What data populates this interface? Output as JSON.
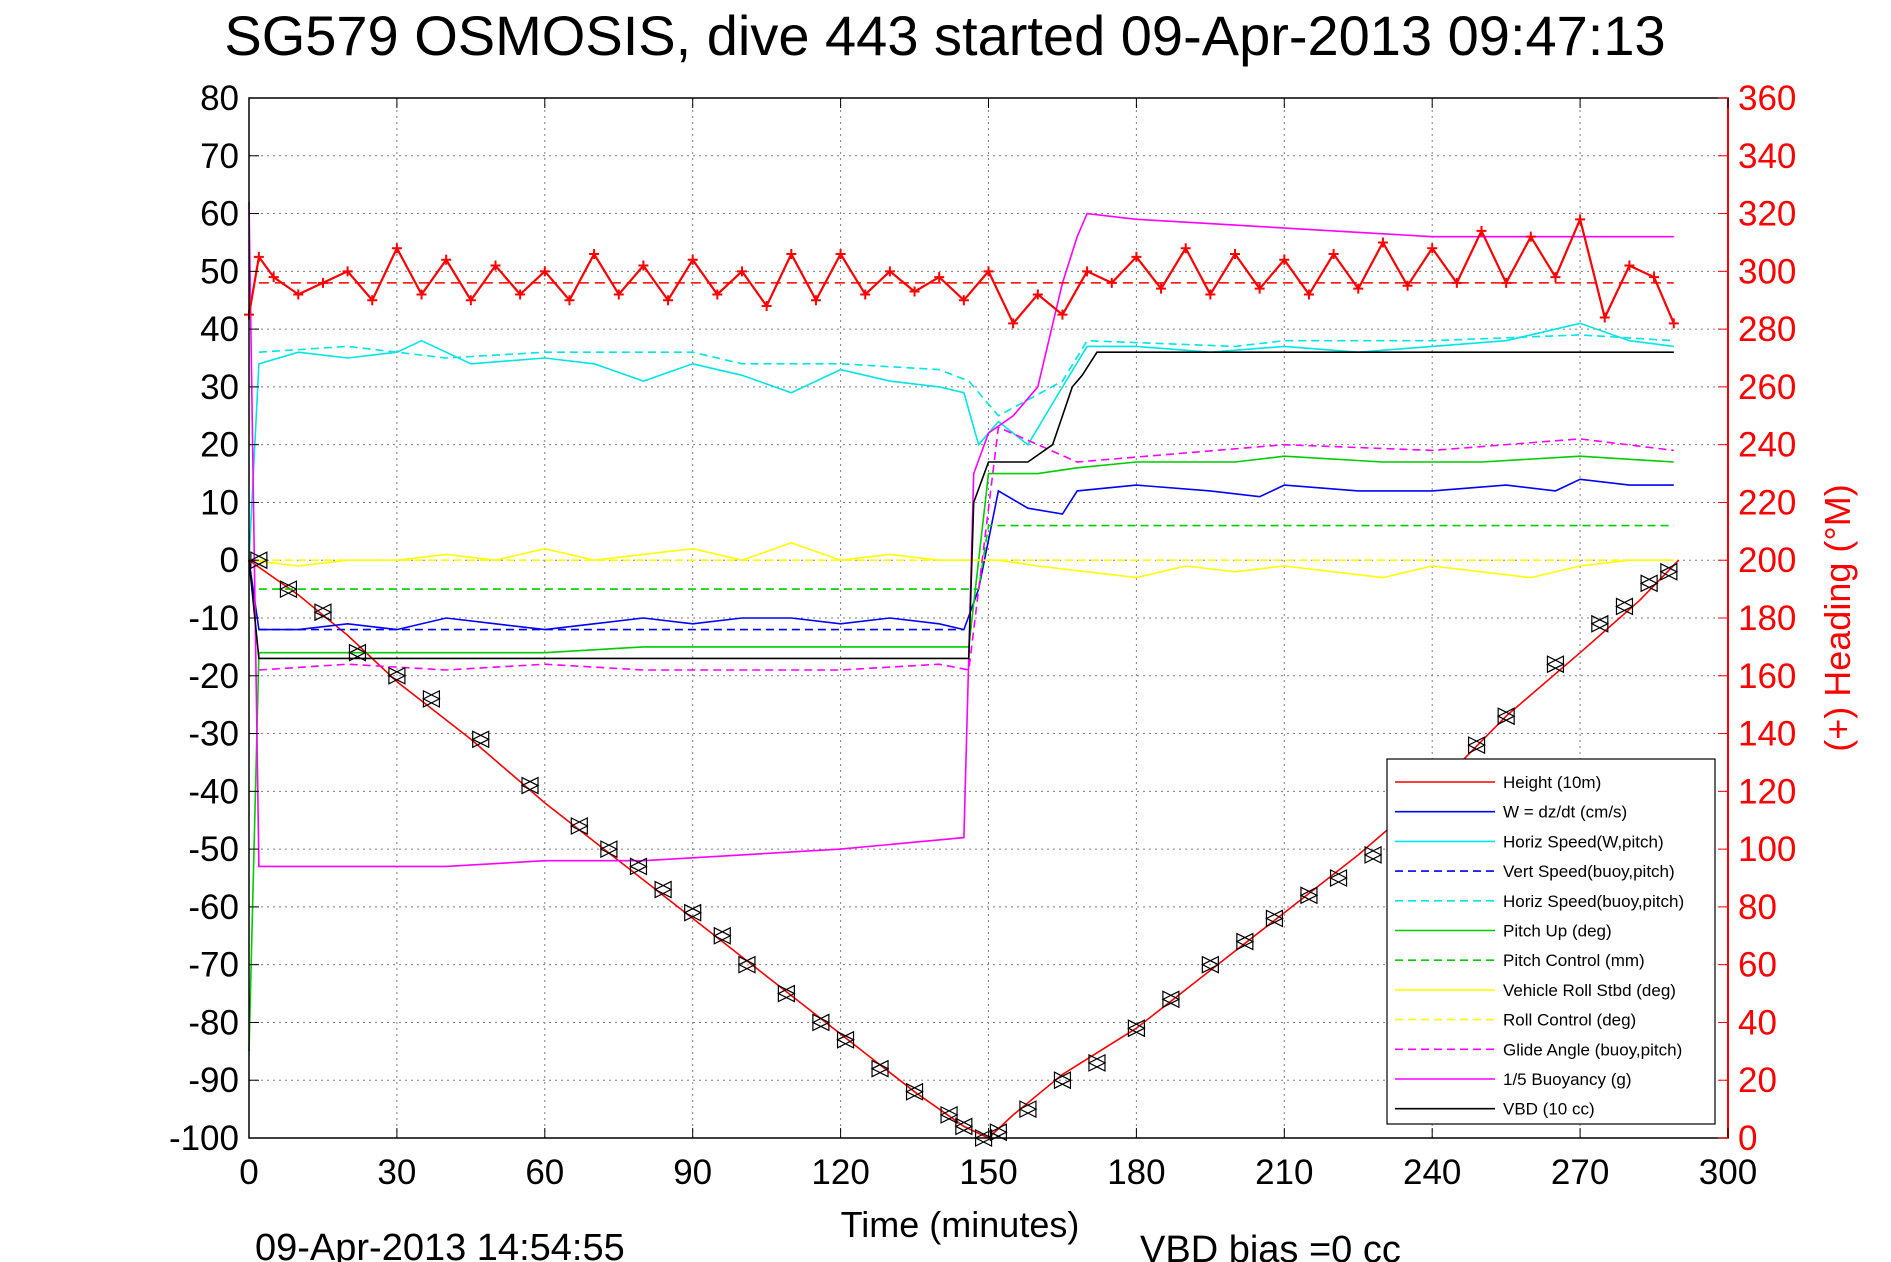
{
  "chart_data": {
    "type": "line",
    "title": "SG579 OSMOSIS, dive 443 started 09-Apr-2013 09:47:13",
    "xlabel": "Time (minutes)",
    "ylabel_right": "(+) Heading (°M)",
    "xlim": [
      0,
      300
    ],
    "ylim_left": [
      -100,
      80
    ],
    "ylim_right": [
      0,
      360
    ],
    "x_ticks": [
      "0",
      "30",
      "60",
      "90",
      "120",
      "150",
      "180",
      "210",
      "240",
      "270",
      "300"
    ],
    "y_left_ticks": [
      "80",
      "70",
      "60",
      "50",
      "40",
      "30",
      "20",
      "10",
      "0",
      "-10",
      "-20",
      "-30",
      "-40",
      "-50",
      "-60",
      "-70",
      "-80",
      "-90",
      "-100"
    ],
    "y_right_ticks": [
      "360",
      "340",
      "320",
      "300",
      "280",
      "260",
      "240",
      "220",
      "200",
      "180",
      "160",
      "140",
      "120",
      "100",
      "80",
      "60",
      "40",
      "20",
      "0"
    ],
    "footer_date": "09-Apr-2013 14:54:55",
    "footer_bias": "VBD bias =0 cc",
    "grid": true,
    "legend_position": "lower-right",
    "series": [
      {
        "name": "Height (10m)",
        "color": "#ff0000",
        "style": "solid",
        "x": [
          0,
          10,
          20,
          30,
          45,
          60,
          75,
          90,
          105,
          120,
          135,
          145,
          150,
          155,
          165,
          180,
          195,
          210,
          225,
          240,
          255,
          270,
          282,
          290
        ],
        "y": [
          0,
          -6,
          -13,
          -21,
          -31,
          -42,
          -52,
          -62,
          -72,
          -82,
          -92,
          -98,
          -100,
          -96,
          -89,
          -81,
          -71,
          -61,
          -51,
          -40,
          -27,
          -16,
          -7,
          0
        ]
      },
      {
        "name": "W = dz/dt (cm/s)",
        "color": "#0000ff",
        "style": "solid",
        "x": [
          0,
          2,
          10,
          20,
          30,
          40,
          50,
          60,
          70,
          80,
          90,
          100,
          110,
          120,
          130,
          140,
          145,
          148,
          152,
          158,
          165,
          168,
          180,
          195,
          205,
          210,
          225,
          240,
          255,
          265,
          270,
          280,
          289
        ],
        "y": [
          0,
          -12,
          -12,
          -11,
          -12,
          -10,
          -11,
          -12,
          -11,
          -10,
          -11,
          -10,
          -10,
          -11,
          -10,
          -11,
          -12,
          -5,
          12,
          9,
          8,
          12,
          13,
          12,
          11,
          13,
          12,
          12,
          13,
          12,
          14,
          13,
          13
        ]
      },
      {
        "name": "Horiz Speed(W,pitch)",
        "color": "#00e5e5",
        "style": "solid",
        "x": [
          0,
          2,
          10,
          20,
          30,
          35,
          45,
          60,
          70,
          80,
          90,
          100,
          110,
          120,
          130,
          140,
          145,
          148,
          152,
          158,
          165,
          170,
          180,
          195,
          210,
          225,
          240,
          255,
          270,
          280,
          289
        ],
        "y": [
          0,
          34,
          36,
          35,
          36,
          38,
          34,
          35,
          34,
          31,
          34,
          32,
          29,
          33,
          31,
          30,
          29,
          20,
          24,
          20,
          30,
          37,
          37,
          36,
          37,
          36,
          37,
          38,
          41,
          38,
          37
        ]
      },
      {
        "name": "Vert Speed(buoy,pitch)",
        "color": "#0000ff",
        "style": "dashed",
        "x": [
          2,
          145
        ],
        "y": [
          -12,
          -12
        ]
      },
      {
        "name": "Horiz Speed(buoy,pitch)",
        "color": "#00e5e5",
        "style": "dashed",
        "x": [
          2,
          20,
          40,
          60,
          90,
          100,
          120,
          140,
          146,
          152,
          165,
          170,
          200,
          210,
          240,
          270,
          289
        ],
        "y": [
          36,
          37,
          35,
          36,
          36,
          34,
          34,
          33,
          31,
          25,
          31,
          38,
          37,
          38,
          38,
          39,
          38
        ]
      },
      {
        "name": "Pitch Up (deg)",
        "color": "#00cc00",
        "style": "solid",
        "x": [
          0,
          2,
          20,
          40,
          60,
          80,
          100,
          120,
          140,
          146,
          150,
          160,
          168,
          180,
          200,
          210,
          230,
          250,
          270,
          289
        ],
        "y": [
          -85,
          -16,
          -16,
          -16,
          -16,
          -15,
          -15,
          -15,
          -15,
          -15,
          15,
          15,
          16,
          17,
          17,
          18,
          17,
          17,
          18,
          17
        ]
      },
      {
        "name": "Pitch Control (mm)",
        "color": "#00cc00",
        "style": "dashed",
        "x": [
          2,
          148,
          150,
          168,
          210,
          289
        ],
        "y": [
          -5,
          -5,
          6,
          6,
          6,
          6
        ]
      },
      {
        "name": "Vehicle Roll Stbd (deg)",
        "color": "#ffff00",
        "style": "solid",
        "x": [
          0,
          10,
          20,
          30,
          40,
          50,
          60,
          70,
          80,
          90,
          100,
          110,
          120,
          130,
          140,
          148,
          152,
          160,
          170,
          180,
          190,
          200,
          210,
          220,
          230,
          240,
          250,
          260,
          270,
          280,
          289
        ],
        "y": [
          0,
          -1,
          0,
          0,
          1,
          0,
          2,
          0,
          1,
          2,
          0,
          3,
          0,
          1,
          0,
          0,
          0,
          -1,
          -2,
          -3,
          -1,
          -2,
          -1,
          -2,
          -3,
          -1,
          -2,
          -3,
          -1,
          0,
          0
        ]
      },
      {
        "name": "Roll Control (deg)",
        "color": "#ffff00",
        "style": "dashed",
        "x": [
          2,
          50,
          90,
          110,
          148,
          180,
          220,
          260,
          289
        ],
        "y": [
          0,
          0,
          0,
          0,
          0,
          0,
          0,
          0,
          0
        ]
      },
      {
        "name": "Glide Angle (buoy,pitch)",
        "color": "#ff00ff",
        "style": "dashed",
        "x": [
          2,
          20,
          40,
          60,
          80,
          100,
          120,
          140,
          146,
          152,
          168,
          210,
          240,
          270,
          289
        ],
        "y": [
          -19,
          -18,
          -19,
          -18,
          -19,
          -19,
          -19,
          -18,
          -19,
          23,
          17,
          20,
          19,
          21,
          19
        ]
      },
      {
        "name": "1/5 Buoyancy (g)",
        "color": "#ff00ff",
        "style": "solid",
        "x": [
          0,
          2,
          20,
          40,
          60,
          80,
          100,
          120,
          145,
          147,
          150,
          155,
          160,
          165,
          168,
          170,
          180,
          200,
          220,
          240,
          260,
          280,
          289
        ],
        "y": [
          62,
          -53,
          -53,
          -53,
          -52,
          -52,
          -51,
          -50,
          -48,
          15,
          22,
          25,
          30,
          48,
          56,
          60,
          59,
          58,
          57,
          56,
          56,
          56,
          56
        ]
      },
      {
        "name": "VBD (10 cc)",
        "color": "#000000",
        "style": "solid",
        "x": [
          0,
          2,
          146,
          147,
          150,
          152,
          158,
          163,
          165,
          167,
          169,
          172,
          289
        ],
        "y": [
          0,
          -17,
          -17,
          10,
          17,
          17,
          17,
          20,
          25,
          30,
          32,
          36,
          36
        ]
      }
    ],
    "heading": {
      "name": "(+) Heading (°M)",
      "color": "#ff0000",
      "x": [
        0,
        2,
        5,
        10,
        15,
        20,
        25,
        30,
        35,
        40,
        45,
        50,
        55,
        60,
        65,
        70,
        75,
        80,
        85,
        90,
        95,
        100,
        105,
        110,
        115,
        120,
        125,
        130,
        135,
        140,
        145,
        150,
        155,
        160,
        165,
        170,
        175,
        180,
        185,
        190,
        195,
        200,
        205,
        210,
        215,
        220,
        225,
        230,
        235,
        240,
        245,
        250,
        255,
        260,
        265,
        270,
        275,
        280,
        285,
        289
      ],
      "y": [
        285,
        305,
        298,
        292,
        296,
        300,
        290,
        308,
        292,
        304,
        290,
        302,
        292,
        300,
        290,
        306,
        292,
        302,
        290,
        304,
        292,
        300,
        288,
        306,
        290,
        306,
        292,
        300,
        293,
        298,
        290,
        300,
        282,
        292,
        285,
        300,
        296,
        305,
        294,
        308,
        292,
        306,
        294,
        304,
        292,
        306,
        294,
        310,
        295,
        308,
        296,
        314,
        296,
        312,
        298,
        318,
        284,
        302,
        298,
        282
      ]
    },
    "heading_mean": 296,
    "markers": {
      "x": [
        2,
        8,
        15,
        22,
        30,
        37,
        47,
        57,
        67,
        73,
        79,
        84,
        90,
        96,
        101,
        109,
        116,
        121,
        128,
        135,
        142,
        145,
        149,
        152,
        158,
        165,
        172,
        180,
        187,
        195,
        202,
        208,
        215,
        221,
        228,
        235,
        241,
        249,
        255,
        265,
        274,
        279,
        284,
        288
      ],
      "y": [
        0,
        -5,
        -9,
        -16,
        -20,
        -24,
        -31,
        -39,
        -46,
        -50,
        -53,
        -57,
        -61,
        -65,
        -70,
        -75,
        -80,
        -83,
        -88,
        -92,
        -96,
        -98,
        -100,
        -99,
        -95,
        -90,
        -87,
        -81,
        -76,
        -70,
        -66,
        -62,
        -58,
        -55,
        -51,
        -46,
        -42,
        -32,
        -27,
        -18,
        -11,
        -8,
        -4,
        -2
      ]
    },
    "legend": [
      "Height (10m)",
      "W = dz/dt (cm/s)",
      "Horiz Speed(W,pitch)",
      "Vert Speed(buoy,pitch)",
      "Horiz Speed(buoy,pitch)",
      "Pitch Up (deg)",
      "Pitch Control (mm)",
      "Vehicle Roll Stbd (deg)",
      "Roll Control (deg)",
      "Glide Angle (buoy,pitch)",
      "1/5 Buoyancy (g)",
      "VBD (10 cc)"
    ]
  }
}
